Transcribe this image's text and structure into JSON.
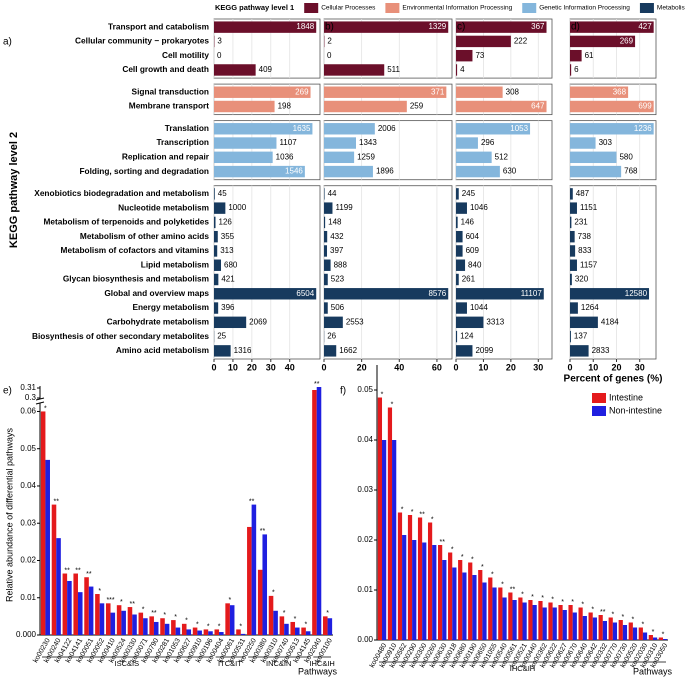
{
  "chart_data": [
    {
      "type": "bar",
      "orientation": "horizontal",
      "legend_title": "KEGG pathway level 1",
      "y_label": "KEGG pathway level 2",
      "x_label": "Percent of genes (%)",
      "grid": true,
      "groups": [
        {
          "name": "Cellular Processes",
          "color": "#6b0f2a",
          "categories": [
            "Transport and catabolism",
            "Cellular community − prokaryotes",
            "Cell motility",
            "Cell growth and death"
          ]
        },
        {
          "name": "Environmental Information Processing",
          "color": "#e8907a",
          "categories": [
            "Signal transduction",
            "Membrane transport"
          ]
        },
        {
          "name": "Genetic Information Processing",
          "color": "#84b6dc",
          "categories": [
            "Translation",
            "Transcription",
            "Replication and repair",
            "Folding, sorting and degradation"
          ]
        },
        {
          "name": "Metabolism",
          "color": "#173a5e",
          "categories": [
            "Xenobiotics biodegradation and metabolism",
            "Nucleotide metabolism",
            "Metabolism of terpenoids and polyketides",
            "Metabolism of other amino acids",
            "Metabolism of cofactors and vitamins",
            "Lipid metabolism",
            "Glycan biosynthesis and metabolism",
            "Global and overview maps",
            "Energy metabolism",
            "Carbohydrate metabolism",
            "Biosynthesis of other secondary metabolites",
            "Amino acid metabolism"
          ]
        }
      ],
      "panels": [
        {
          "label": "a)",
          "xlim": [
            0,
            56
          ],
          "xticks": [
            0,
            10,
            20,
            30,
            40
          ],
          "values": [
            54,
            0.2,
            0,
            22,
            51,
            32,
            52,
            33,
            31,
            48,
            0.4,
            6,
            0.8,
            2,
            1.7,
            3.7,
            2.3,
            54,
            2.2,
            17,
            0.1,
            8.8
          ],
          "gene_counts": [
            1848,
            3,
            0,
            409,
            269,
            198,
            1635,
            1107,
            1036,
            1546,
            45,
            1000,
            126,
            355,
            313,
            680,
            421,
            6504,
            396,
            2069,
            25,
            1316
          ]
        },
        {
          "label": "b)",
          "xlim": [
            0,
            68
          ],
          "xticks": [
            0,
            20,
            40,
            60
          ],
          "values": [
            66,
            0.2,
            0,
            32,
            65,
            44,
            27,
            17,
            16,
            26,
            0.3,
            4.5,
            0.6,
            1.7,
            1.6,
            3.5,
            2,
            66,
            2,
            10,
            0.1,
            6.5
          ],
          "gene_counts": [
            1329,
            2,
            0,
            511,
            371,
            259,
            2006,
            1343,
            1259,
            1896,
            44,
            1199,
            148,
            432,
            397,
            888,
            523,
            8576,
            506,
            2553,
            26,
            1662
          ]
        },
        {
          "label": "c)",
          "xlim": [
            0,
            35
          ],
          "xticks": [
            0,
            10,
            20,
            30
          ],
          "values": [
            33,
            20,
            6,
            0.4,
            17,
            33,
            27,
            8,
            13,
            16,
            1,
            4,
            0.6,
            2.4,
            2.4,
            3.3,
            1,
            32,
            4,
            10,
            0.4,
            6
          ],
          "gene_counts": [
            367,
            222,
            73,
            4,
            308,
            647,
            1053,
            296,
            512,
            630,
            245,
            1046,
            146,
            604,
            609,
            840,
            261,
            11107,
            1044,
            3313,
            124,
            2099
          ]
        },
        {
          "label": "d)",
          "xlim": [
            0,
            37
          ],
          "xticks": [
            0,
            10,
            20,
            30
          ],
          "values": [
            36,
            28,
            5,
            0.5,
            25,
            36,
            36,
            11,
            20,
            22,
            1.2,
            3,
            0.6,
            2,
            2.2,
            3,
            0.8,
            34,
            3.4,
            12,
            0.4,
            8
          ],
          "gene_counts": [
            427,
            269,
            61,
            6,
            368,
            699,
            1236,
            303,
            580,
            768,
            487,
            1151,
            231,
            738,
            833,
            1157,
            320,
            12580,
            1264,
            4184,
            137,
            2833
          ]
        }
      ]
    },
    {
      "type": "bar",
      "label": "e)",
      "y_label": "Relative abundance of differential pathways",
      "x_label": "Pathways",
      "categories": [
        "ko00230",
        "ko00240",
        "ko04122",
        "ko04141",
        "ko00051",
        "ko00052",
        "ko00410",
        "ko00524",
        "ko00330",
        "ko00071",
        "ko00790",
        "ko00281",
        "ko01053",
        "ko00627",
        "ko00910",
        "ko00196",
        "ko00404",
        "ko00061",
        "ko00531",
        "ko00250",
        "ko00380",
        "ko00310",
        "ko00740",
        "ko00513",
        "ko04145",
        "ko02040",
        "ko00100"
      ],
      "series": [
        {
          "color": "#e41a1c",
          "values": [
            0.06,
            0.035,
            0.0165,
            0.0165,
            0.0155,
            0.011,
            0.0085,
            0.008,
            0.0075,
            0.006,
            0.005,
            0.0045,
            0.004,
            0.003,
            0.002,
            0.0015,
            0.0015,
            0.0085,
            0.0015,
            0.029,
            0.0175,
            0.0105,
            0.005,
            0.0035,
            0.002,
            0.308,
            0.005
          ]
        },
        {
          "color": "#1f1fe0",
          "values": [
            0.047,
            0.026,
            0.0145,
            0.0115,
            0.013,
            0.0085,
            0.006,
            0.0065,
            0.0055,
            0.0045,
            0.0035,
            0.003,
            0.002,
            0.0015,
            0.0012,
            0.001,
            0.0008,
            0.008,
            0.0003,
            0.035,
            0.027,
            0.0065,
            0.003,
            0.002,
            0.001,
            0.311,
            0.0045
          ]
        }
      ],
      "significance": [
        "*",
        "**",
        "**",
        "**",
        "**",
        "*",
        "***",
        "*",
        "**",
        "*",
        "**",
        "*",
        "*",
        "*",
        "*",
        "*",
        "*",
        "*",
        "*",
        "**",
        "**",
        "*",
        "*",
        "*",
        "*",
        "**",
        "*"
      ],
      "groups": [
        {
          "label": "ISC&IS",
          "from": 0,
          "to": 15
        },
        {
          "label": "ITC&IT",
          "from": 16,
          "to": 18
        },
        {
          "label": "INC&IN",
          "from": 19,
          "to": 24
        },
        {
          "label": "IHC&IH",
          "from": 25,
          "to": 26
        }
      ],
      "ylim": [
        0,
        0.312
      ],
      "y_break": [
        0.062,
        0.3
      ],
      "yticks": [
        {
          "value": 0,
          "label": "0.000"
        },
        0.01,
        0.02,
        0.03,
        0.04,
        0.05,
        0.06,
        0.3,
        0.31
      ]
    },
    {
      "type": "bar",
      "label": "f)",
      "x_label": "Pathways",
      "categories": [
        "ko00480",
        "ko00910",
        "ko00562",
        "ko00290",
        "ko00300",
        "ko00260",
        "ko00630",
        "ko00018",
        "ko00680",
        "ko00190",
        "ko00650",
        "ko01055",
        "ko00540",
        "ko00561",
        "ko00521",
        "ko00440",
        "ko00362",
        "ko00622",
        "ko00627",
        "ko00670",
        "ko00640",
        "ko00642",
        "ko00332",
        "ko00770",
        "ko00730",
        "ko00520",
        "ko02030",
        "ko00310",
        "ko03050"
      ],
      "series": [
        {
          "name": "Intestine",
          "color": "#e41a1c",
          "values": [
            0.0485,
            0.0465,
            0.0255,
            0.025,
            0.0245,
            0.0235,
            0.019,
            0.0175,
            0.016,
            0.0155,
            0.014,
            0.0125,
            0.0105,
            0.0095,
            0.0085,
            0.008,
            0.0078,
            0.0075,
            0.007,
            0.007,
            0.0065,
            0.0055,
            0.005,
            0.0045,
            0.004,
            0.0035,
            0.0025,
            0.001,
            0.0005
          ]
        },
        {
          "name": "Non-intestine",
          "color": "#1f1fe0",
          "values": [
            0.04,
            0.04,
            0.021,
            0.02,
            0.0195,
            0.019,
            0.016,
            0.0145,
            0.0135,
            0.013,
            0.0115,
            0.0105,
            0.0085,
            0.008,
            0.0075,
            0.007,
            0.0065,
            0.0065,
            0.006,
            0.0055,
            0.0048,
            0.0045,
            0.0038,
            0.0035,
            0.003,
            0.0025,
            0.0015,
            0.0005,
            0.0002
          ]
        }
      ],
      "significance": [
        "*",
        "*",
        "*",
        "*",
        "**",
        "*",
        "**",
        "*",
        "*",
        "*",
        "*",
        "*",
        "*",
        "**",
        "*",
        "*",
        "*",
        "*",
        "*",
        "*",
        "*",
        "*",
        "**",
        "*",
        "*",
        "*",
        "*",
        "*",
        "*"
      ],
      "groups": [
        {
          "label": "IHC&IH",
          "from": 0,
          "to": 28
        }
      ],
      "ylim": [
        0,
        0.055
      ],
      "yticks": [
        {
          "value": 0,
          "label": "0.00"
        },
        0.01,
        0.02,
        0.03,
        0.04,
        0.05
      ],
      "legend": "top-right"
    }
  ]
}
